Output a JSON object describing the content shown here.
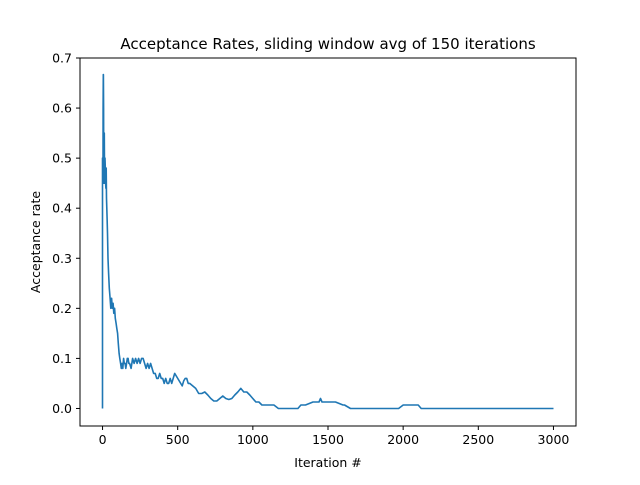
{
  "chart_data": {
    "type": "line",
    "title": "Acceptance Rates, sliding window avg of 150 iterations",
    "xlabel": "Iteration #",
    "ylabel": "Acceptance rate",
    "xlim": [
      -150,
      3150
    ],
    "ylim": [
      -0.035,
      0.7
    ],
    "xticks": [
      0,
      500,
      1000,
      1500,
      2000,
      2500,
      3000
    ],
    "yticks": [
      0.0,
      0.1,
      0.2,
      0.3,
      0.4,
      0.5,
      0.6,
      0.7
    ],
    "xtick_labels": [
      "0",
      "500",
      "1000",
      "1500",
      "2000",
      "2500",
      "3000"
    ],
    "ytick_labels": [
      "0.0",
      "0.1",
      "0.2",
      "0.3",
      "0.4",
      "0.5",
      "0.6",
      "0.7"
    ],
    "grid": false,
    "legend": "none",
    "line_color": "#1f77b4",
    "series": [
      {
        "x": [
          0,
          0,
          1,
          2,
          3,
          4,
          5,
          6,
          7,
          8,
          9,
          10,
          12,
          14,
          16,
          18,
          20,
          22,
          24,
          26,
          28,
          30,
          33,
          36,
          40,
          45,
          50,
          55,
          60,
          65,
          70,
          75,
          80,
          85,
          90,
          95,
          100,
          105,
          110,
          115,
          120,
          125,
          130,
          135,
          140,
          145,
          150,
          155,
          160,
          165,
          170,
          175,
          180,
          190,
          200,
          210,
          220,
          230,
          240,
          250,
          260,
          270,
          280,
          290,
          300,
          310,
          320,
          330,
          340,
          350,
          360,
          370,
          380,
          390,
          400,
          410,
          420,
          430,
          440,
          450,
          460,
          470,
          480,
          490,
          500,
          510,
          520,
          530,
          540,
          550,
          560,
          570,
          580,
          600,
          620,
          640,
          660,
          680,
          700,
          720,
          740,
          760,
          780,
          800,
          820,
          840,
          860,
          880,
          900,
          920,
          940,
          960,
          980,
          1000,
          1020,
          1040,
          1060,
          1100,
          1140,
          1170,
          1200,
          1250,
          1300,
          1320,
          1350,
          1400,
          1440,
          1450,
          1460,
          1500,
          1550,
          1600,
          1610,
          1650,
          1700,
          1800,
          1900,
          1970,
          2000,
          2050,
          2100,
          2120,
          2200,
          2400,
          2600,
          2800,
          3000
        ],
        "y": [
          0.0,
          0.5,
          0.45,
          0.5,
          0.47,
          0.6,
          0.667,
          0.667,
          0.6,
          0.5,
          0.45,
          0.5,
          0.55,
          0.45,
          0.5,
          0.48,
          0.45,
          0.44,
          0.48,
          0.42,
          0.4,
          0.38,
          0.35,
          0.3,
          0.27,
          0.24,
          0.22,
          0.2,
          0.22,
          0.2,
          0.21,
          0.19,
          0.2,
          0.18,
          0.17,
          0.16,
          0.15,
          0.13,
          0.11,
          0.1,
          0.09,
          0.08,
          0.09,
          0.08,
          0.1,
          0.09,
          0.09,
          0.08,
          0.09,
          0.1,
          0.1,
          0.09,
          0.09,
          0.08,
          0.1,
          0.09,
          0.1,
          0.09,
          0.1,
          0.09,
          0.1,
          0.1,
          0.09,
          0.08,
          0.09,
          0.08,
          0.09,
          0.08,
          0.07,
          0.07,
          0.06,
          0.06,
          0.07,
          0.06,
          0.06,
          0.05,
          0.06,
          0.05,
          0.05,
          0.06,
          0.05,
          0.06,
          0.07,
          0.065,
          0.06,
          0.055,
          0.05,
          0.045,
          0.055,
          0.06,
          0.06,
          0.05,
          0.05,
          0.045,
          0.04,
          0.03,
          0.03,
          0.033,
          0.027,
          0.02,
          0.015,
          0.015,
          0.02,
          0.025,
          0.02,
          0.018,
          0.02,
          0.027,
          0.033,
          0.04,
          0.033,
          0.033,
          0.027,
          0.02,
          0.013,
          0.013,
          0.007,
          0.007,
          0.007,
          0.0,
          0.0,
          0.0,
          0.0,
          0.007,
          0.007,
          0.013,
          0.013,
          0.02,
          0.013,
          0.013,
          0.013,
          0.007,
          0.007,
          0.0,
          0.0,
          0.0,
          0.0,
          0.0,
          0.007,
          0.007,
          0.007,
          0.0,
          0.0,
          0.0,
          0.0,
          0.0,
          0.0
        ]
      }
    ]
  }
}
